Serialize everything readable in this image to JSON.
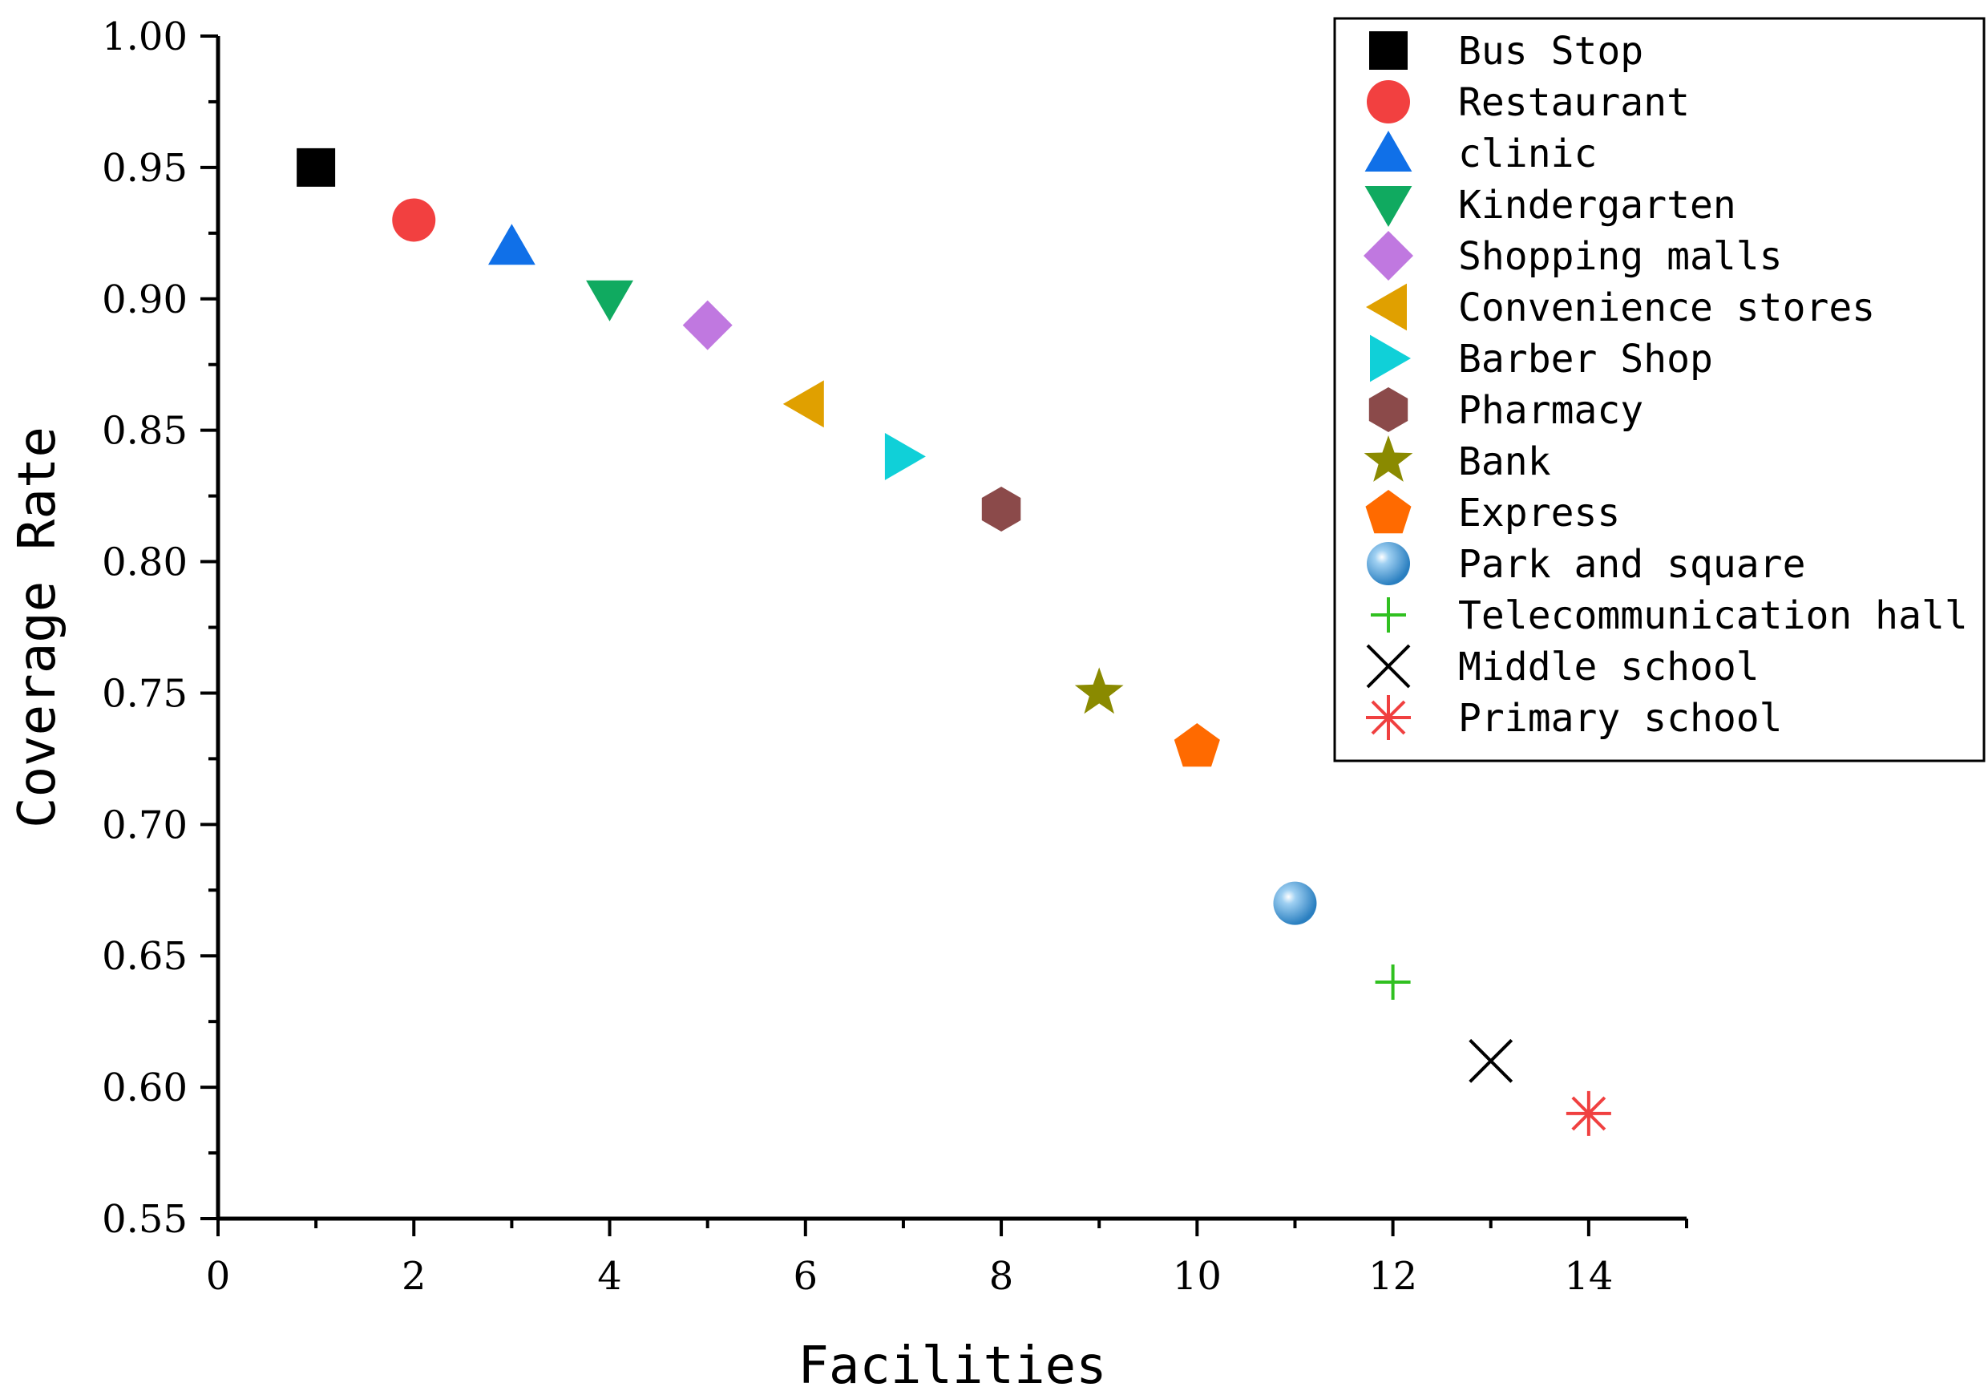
{
  "chart_data": {
    "type": "scatter",
    "title": "",
    "xlabel": "Facilities",
    "ylabel": "Coverage Rate",
    "xlim": [
      0,
      15
    ],
    "ylim": [
      0.55,
      1.0
    ],
    "x_ticks": [
      "0",
      "2",
      "4",
      "6",
      "8",
      "10",
      "12",
      "14"
    ],
    "y_ticks": [
      "0.55",
      "0.60",
      "0.65",
      "0.70",
      "0.75",
      "0.80",
      "0.85",
      "0.90",
      "0.95",
      "1.00"
    ],
    "grid": false,
    "legend_position": "top-right",
    "series": [
      {
        "name": "Bus Stop",
        "x": 1,
        "y": 0.95,
        "marker": "square",
        "color": "#000000"
      },
      {
        "name": "Restaurant",
        "x": 2,
        "y": 0.93,
        "marker": "circle",
        "color": "#f24040"
      },
      {
        "name": "clinic",
        "x": 3,
        "y": 0.92,
        "marker": "triangle-up",
        "color": "#1070e8"
      },
      {
        "name": "Kindergarten",
        "x": 4,
        "y": 0.9,
        "marker": "triangle-down",
        "color": "#10aa60"
      },
      {
        "name": "Shopping malls",
        "x": 5,
        "y": 0.89,
        "marker": "diamond",
        "color": "#c078e0"
      },
      {
        "name": "Convenience stores",
        "x": 6,
        "y": 0.86,
        "marker": "triangle-left",
        "color": "#e0a000"
      },
      {
        "name": "Barber Shop",
        "x": 7,
        "y": 0.84,
        "marker": "triangle-right",
        "color": "#10d0d8"
      },
      {
        "name": "Pharmacy",
        "x": 8,
        "y": 0.82,
        "marker": "hexagon",
        "color": "#8b4a4a"
      },
      {
        "name": "Bank",
        "x": 9,
        "y": 0.75,
        "marker": "star",
        "color": "#8a8a00"
      },
      {
        "name": "Express",
        "x": 10,
        "y": 0.73,
        "marker": "pentagon",
        "color": "#ff6a00"
      },
      {
        "name": "Park and square",
        "x": 11,
        "y": 0.67,
        "marker": "sphere",
        "color": "#3a90d0"
      },
      {
        "name": "Telecommunication hall",
        "x": 12,
        "y": 0.64,
        "marker": "plus",
        "color": "#30c020"
      },
      {
        "name": "Middle school",
        "x": 13,
        "y": 0.61,
        "marker": "cross",
        "color": "#000000"
      },
      {
        "name": "Primary school",
        "x": 14,
        "y": 0.59,
        "marker": "asterisk",
        "color": "#f04040"
      }
    ]
  }
}
